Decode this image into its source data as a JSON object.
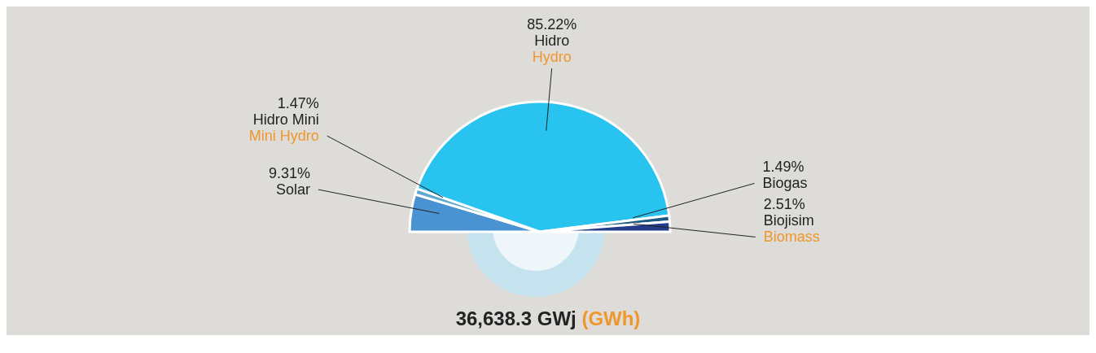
{
  "chart_data": {
    "type": "pie",
    "title": "36,638.3 GWj (GWh)",
    "categories": [
      "Solar",
      "Hidro Mini\nMini Hydro",
      "Hidro\nHydro",
      "Biogas",
      "Biojisim\nBiomass"
    ],
    "values": [
      9.31,
      1.47,
      85.22,
      1.49,
      2.51
    ],
    "value_labels": [
      "9.31%",
      "1.47%",
      "85.22%",
      "1.49%",
      "2.51%"
    ],
    "colors": [
      "#4a93d2",
      "#5fa9d0",
      "#29c3f0",
      "#1b5a82",
      "#233d8c"
    ]
  }
}
